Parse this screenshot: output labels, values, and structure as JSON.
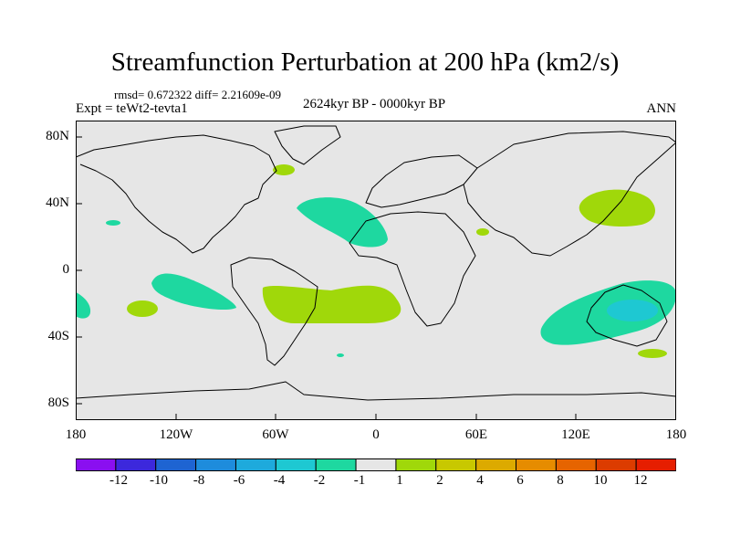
{
  "title": "Streamfunction Perturbation at 200 hPa (km2/s)",
  "stats": "rmsd= 0.672322 diff= 2.21609e-09",
  "experiment": "Expt = teWt2-tevta1",
  "period": "2624kyr BP - 0000kyr BP",
  "season": "ANN",
  "map": {
    "y_ticks": [
      "80N",
      "40N",
      "0",
      "40S",
      "80S"
    ],
    "x_ticks": [
      "180",
      "120W",
      "60W",
      "0",
      "60E",
      "120E",
      "180"
    ],
    "ocean_color": "#e6e6e6",
    "coast_color": "#000000"
  },
  "colorbar": {
    "colors": [
      "#8a0ff0",
      "#3c28dc",
      "#1e64d2",
      "#1e8cdc",
      "#1eaadc",
      "#1ec8d2",
      "#1ed8a0",
      "#e6e6e6",
      "#a0d80a",
      "#c8c800",
      "#dcaa00",
      "#e68c00",
      "#e66400",
      "#dc3c00",
      "#e61e00"
    ],
    "labels": [
      "-12",
      "-10",
      "-8",
      "-6",
      "-4",
      "-2",
      "-1",
      "1",
      "2",
      "4",
      "6",
      "8",
      "10",
      "12"
    ]
  }
}
